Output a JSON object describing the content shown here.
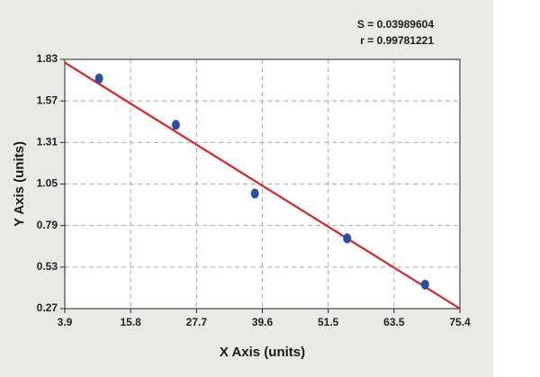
{
  "stats": {
    "s_label": "S = 0.03989604",
    "r_label": "r = 0.99781221"
  },
  "chart_data": {
    "type": "scatter",
    "title": "",
    "xlabel": "X Axis (units)",
    "ylabel": "Y Axis (units)",
    "xlim": [
      3.9,
      75.4
    ],
    "ylim": [
      0.27,
      1.83
    ],
    "x_ticks": [
      "3.9",
      "15.8",
      "27.7",
      "39.6",
      "51.5",
      "63.5",
      "75.4"
    ],
    "y_ticks": [
      "0.27",
      "0.53",
      "0.79",
      "1.05",
      "1.31",
      "1.57",
      "1.83"
    ],
    "grid": true,
    "series": [
      {
        "x": [
          10.1,
          24.0,
          38.3,
          55.0,
          69.1
        ],
        "y": [
          1.71,
          1.42,
          0.99,
          0.71,
          0.42
        ],
        "color": "#2b4fa3"
      }
    ],
    "fit_line": {
      "x": [
        3.9,
        75.4
      ],
      "y": [
        1.81,
        0.27
      ],
      "color": "#e01f1f"
    }
  }
}
